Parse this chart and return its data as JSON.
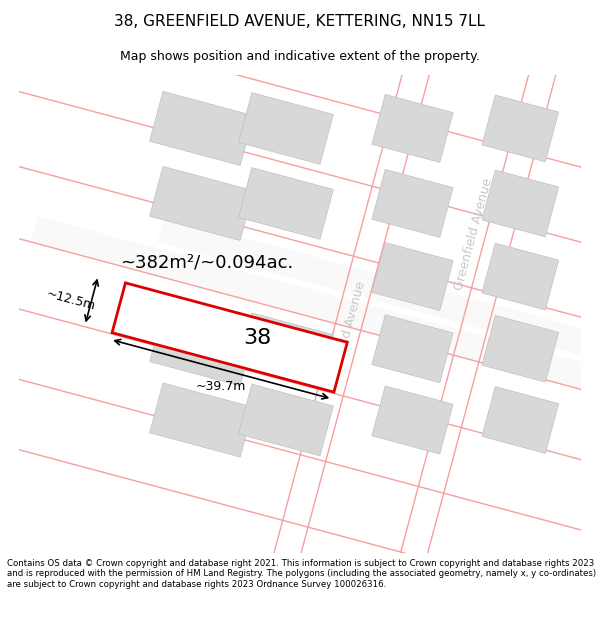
{
  "title": "38, GREENFIELD AVENUE, KETTERING, NN15 7LL",
  "subtitle": "Map shows position and indicative extent of the property.",
  "copyright": "Contains OS data © Crown copyright and database right 2021. This information is subject to Crown copyright and database rights 2023 and is reproduced with the permission of HM Land Registry. The polygons (including the associated geometry, namely x, y co-ordinates) are subject to Crown copyright and database rights 2023 Ordnance Survey 100026316.",
  "map_bg": "#ffffff",
  "street_color": "#f5a0a0",
  "building_color": "#d8d8d8",
  "building_edge": "#c0c0c0",
  "highlight_color": "#dd0000",
  "highlight_fill": "#ffffff",
  "street_label": "Greenfield Avenue",
  "street_label_color": "#c8c8c8",
  "area_label": "~382m²/~0.094ac.",
  "width_label": "~39.7m",
  "height_label": "~12.5m",
  "number_label": "38",
  "map_region": [
    0,
    50,
    600,
    510
  ]
}
